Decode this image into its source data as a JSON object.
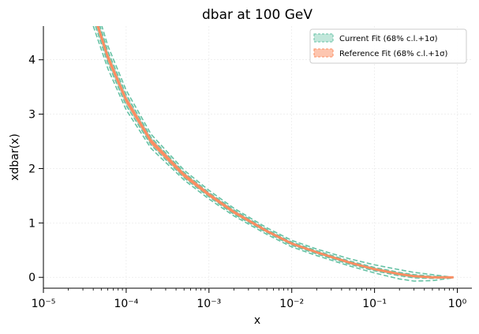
{
  "chart_data": {
    "type": "line",
    "title": "dbar at 100 GeV",
    "xlabel": "x",
    "ylabel": "xdbar(x)",
    "x_scale": "log",
    "xlim": [
      1e-05,
      1.5
    ],
    "ylim": [
      -0.2,
      4.62
    ],
    "grid": true,
    "legend_position": "top-right",
    "x_tick_labels": [
      "10⁻⁵",
      "10⁻⁴",
      "10⁻³",
      "10⁻²",
      "10⁻¹",
      "10⁰"
    ],
    "y_ticks": [
      0,
      1,
      2,
      3,
      4
    ],
    "y_tick_labels": [
      "0",
      "1",
      "2",
      "3",
      "4"
    ],
    "series": [
      {
        "name": "Current Fit (68% c.l.+1σ)",
        "color": "#66c2a5",
        "central": [
          [
            4e-05,
            4.88
          ],
          [
            6e-05,
            4.05
          ],
          [
            0.0001,
            3.26
          ],
          [
            0.0002,
            2.5
          ],
          [
            0.0005,
            1.88
          ],
          [
            0.001,
            1.52
          ],
          [
            0.002,
            1.2
          ],
          [
            0.005,
            0.85
          ],
          [
            0.01,
            0.62
          ],
          [
            0.02,
            0.46
          ],
          [
            0.05,
            0.27
          ],
          [
            0.1,
            0.15
          ],
          [
            0.2,
            0.06
          ],
          [
            0.3,
            0.02
          ],
          [
            0.5,
            0.0
          ],
          [
            0.7,
            0.0
          ],
          [
            0.9,
            0.0
          ]
        ],
        "band_68_upper": [
          [
            4e-05,
            5.02
          ],
          [
            6e-05,
            4.16
          ],
          [
            0.0001,
            3.36
          ],
          [
            0.0002,
            2.57
          ],
          [
            0.0005,
            1.93
          ],
          [
            0.001,
            1.56
          ],
          [
            0.002,
            1.24
          ],
          [
            0.005,
            0.88
          ],
          [
            0.01,
            0.65
          ],
          [
            0.02,
            0.49
          ],
          [
            0.05,
            0.3
          ],
          [
            0.1,
            0.18
          ],
          [
            0.2,
            0.09
          ],
          [
            0.3,
            0.05
          ],
          [
            0.5,
            0.02
          ],
          [
            0.7,
            0.01
          ],
          [
            0.9,
            0.0
          ]
        ],
        "band_68_lower": [
          [
            4e-05,
            4.74
          ],
          [
            6e-05,
            3.94
          ],
          [
            0.0001,
            3.16
          ],
          [
            0.0002,
            2.43
          ],
          [
            0.0005,
            1.83
          ],
          [
            0.001,
            1.48
          ],
          [
            0.002,
            1.16
          ],
          [
            0.005,
            0.82
          ],
          [
            0.01,
            0.59
          ],
          [
            0.02,
            0.43
          ],
          [
            0.05,
            0.24
          ],
          [
            0.1,
            0.12
          ],
          [
            0.2,
            0.03
          ],
          [
            0.3,
            -0.01
          ],
          [
            0.5,
            -0.02
          ],
          [
            0.7,
            -0.01
          ],
          [
            0.9,
            0.0
          ]
        ],
        "band_1sigma_upper": [
          [
            4e-05,
            5.14
          ],
          [
            6e-05,
            4.26
          ],
          [
            0.0001,
            3.44
          ],
          [
            0.0002,
            2.63
          ],
          [
            0.0005,
            1.97
          ],
          [
            0.001,
            1.6
          ],
          [
            0.002,
            1.27
          ],
          [
            0.005,
            0.91
          ],
          [
            0.01,
            0.68
          ],
          [
            0.02,
            0.52
          ],
          [
            0.05,
            0.34
          ],
          [
            0.1,
            0.23
          ],
          [
            0.2,
            0.14
          ],
          [
            0.3,
            0.09
          ],
          [
            0.5,
            0.05
          ],
          [
            0.7,
            0.02
          ],
          [
            0.9,
            0.0
          ]
        ],
        "band_1sigma_lower": [
          [
            4e-05,
            4.62
          ],
          [
            6e-05,
            3.84
          ],
          [
            0.0001,
            3.08
          ],
          [
            0.0002,
            2.37
          ],
          [
            0.0005,
            1.79
          ],
          [
            0.001,
            1.44
          ],
          [
            0.002,
            1.13
          ],
          [
            0.005,
            0.79
          ],
          [
            0.01,
            0.56
          ],
          [
            0.02,
            0.4
          ],
          [
            0.05,
            0.21
          ],
          [
            0.1,
            0.08
          ],
          [
            0.2,
            -0.03
          ],
          [
            0.3,
            -0.07
          ],
          [
            0.5,
            -0.06
          ],
          [
            0.7,
            -0.03
          ],
          [
            0.9,
            -0.01
          ]
        ]
      },
      {
        "name": "Reference Fit (68% c.l.+1σ)",
        "color": "#fc8d62",
        "central": [
          [
            4e-05,
            4.88
          ],
          [
            6e-05,
            4.05
          ],
          [
            0.0001,
            3.26
          ],
          [
            0.0002,
            2.5
          ],
          [
            0.0005,
            1.88
          ],
          [
            0.001,
            1.52
          ],
          [
            0.002,
            1.2
          ],
          [
            0.005,
            0.85
          ],
          [
            0.01,
            0.62
          ],
          [
            0.02,
            0.46
          ],
          [
            0.05,
            0.27
          ],
          [
            0.1,
            0.15
          ],
          [
            0.2,
            0.06
          ],
          [
            0.3,
            0.02
          ],
          [
            0.5,
            0.0
          ],
          [
            0.7,
            0.0
          ],
          [
            0.9,
            0.0
          ]
        ],
        "band_half_width": [
          0.08,
          0.07,
          0.06,
          0.05,
          0.04,
          0.035,
          0.03,
          0.025,
          0.02,
          0.02,
          0.015,
          0.012,
          0.01,
          0.008,
          0.006,
          0.004,
          0.002
        ]
      }
    ]
  }
}
